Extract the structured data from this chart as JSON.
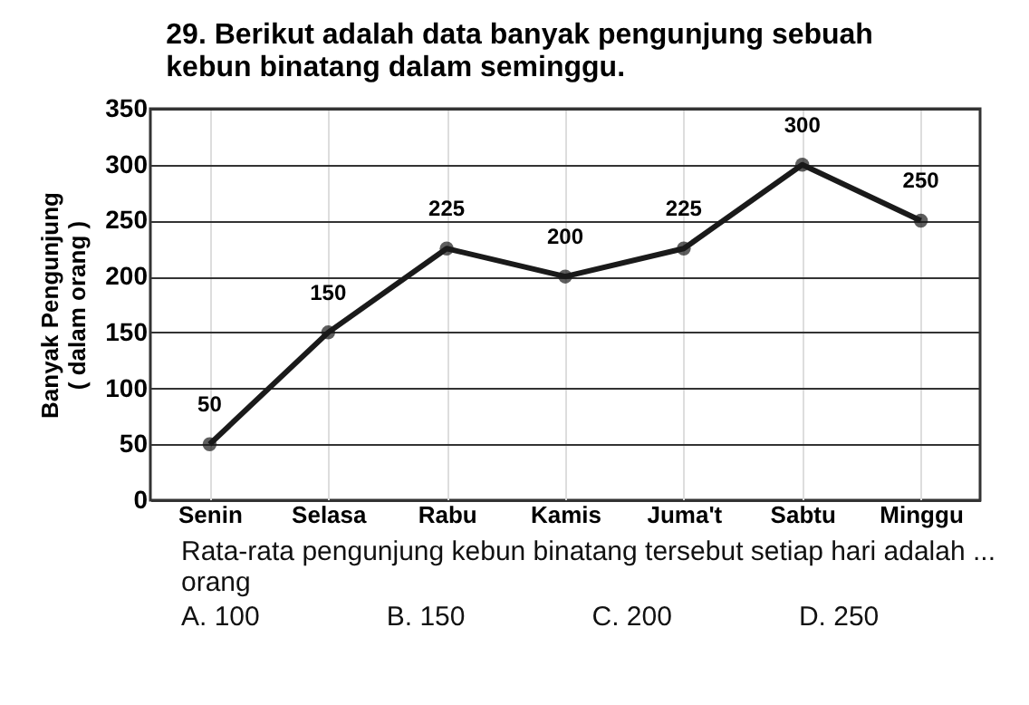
{
  "chart_data": {
    "type": "line",
    "title": "29. Berikut adalah data banyak pengunjung sebuah kebun binatang dalam seminggu.",
    "ylabel": "Banyak Pengunjung\n( dalam orang )",
    "categories": [
      "Senin",
      "Selasa",
      "Rabu",
      "Kamis",
      "Juma't",
      "Sabtu",
      "Minggu"
    ],
    "series": [
      {
        "color": "#1a1a1a",
        "values": [
          50,
          150,
          225,
          200,
          225,
          300,
          250
        ]
      }
    ],
    "ylim": [
      0,
      350
    ],
    "yticks": [
      0,
      50,
      100,
      150,
      200,
      250,
      300,
      350
    ],
    "grid": true,
    "marker": "circle",
    "line_style": "solid",
    "data_labels": true,
    "legend": false,
    "annotations": [
      "Rata-rata pengunjung kebun binatang tersebut setiap hari adalah ... orang",
      "A. 100",
      "B. 150",
      "C. 200",
      "D. 250"
    ]
  }
}
